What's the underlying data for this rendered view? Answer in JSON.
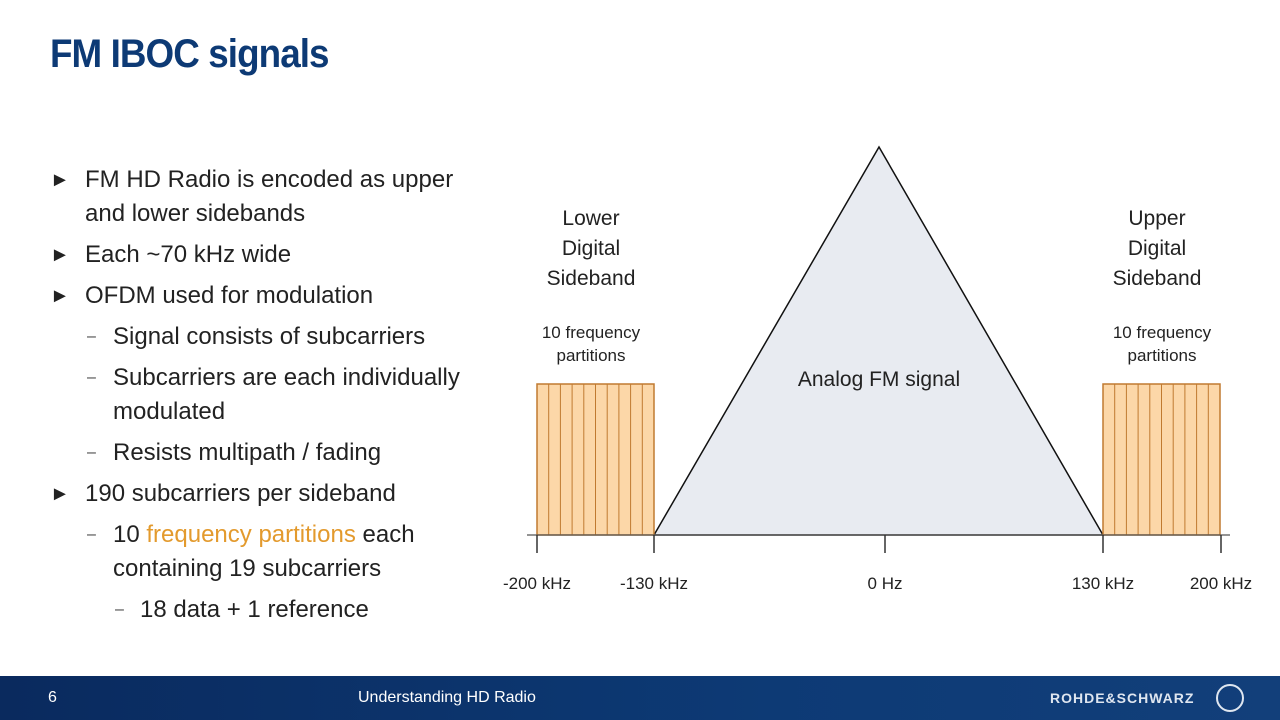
{
  "title": "FM IBOC signals",
  "bullets": [
    {
      "text": "FM HD Radio is encoded as upper and lower sidebands"
    },
    {
      "text": "Each ~70 kHz wide"
    },
    {
      "text": "OFDM used for modulation",
      "sub": [
        {
          "text": "Signal consists of subcarriers"
        },
        {
          "text": "Subcarriers are each individually modulated"
        },
        {
          "text": "Resists multipath / fading"
        }
      ]
    },
    {
      "text": "190 subcarriers per sideband",
      "sub": [
        {
          "parts": [
            {
              "text": "10 "
            },
            {
              "text": "frequency partitions",
              "color": "#e39a2d"
            },
            {
              "text": " each containing 19 subcarriers"
            }
          ],
          "sub": [
            {
              "text": "18 data + 1 reference"
            }
          ]
        }
      ]
    }
  ],
  "diagram": {
    "lower_label": [
      "Lower",
      "Digital",
      "Sideband"
    ],
    "lower_note": [
      "10 frequency",
      "partitions"
    ],
    "upper_label": [
      "Upper",
      "Digital",
      "Sideband"
    ],
    "upper_note": [
      "10 frequency",
      "partitions"
    ],
    "center_label": "Analog FM signal",
    "axis_labels": [
      "-200 kHz",
      "-130 kHz",
      "0 Hz",
      "130 kHz",
      "200 kHz"
    ]
  },
  "footer": {
    "page": "6",
    "title": "Understanding HD Radio",
    "logo": "ROHDE&SCHWARZ"
  }
}
